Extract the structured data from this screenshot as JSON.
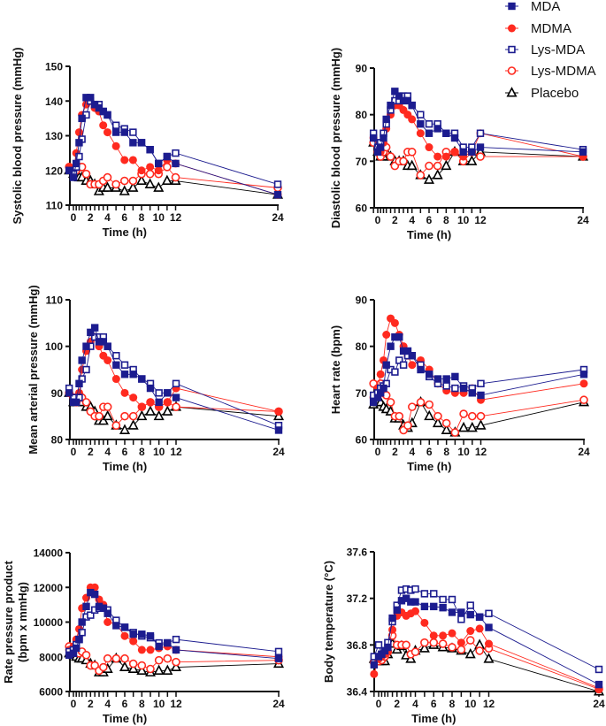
{
  "legend": [
    {
      "name": "MDA",
      "color": "#1c1c8f",
      "marker": "filled-square"
    },
    {
      "name": "MDMA",
      "color": "#ff2a1f",
      "marker": "filled-circle"
    },
    {
      "name": "Lys-MDA",
      "color": "#1c1c8f",
      "marker": "open-square"
    },
    {
      "name": "Lys-MDMA",
      "color": "#ff2a1f",
      "marker": "open-circle"
    },
    {
      "name": "Placebo",
      "color": "#000000",
      "marker": "open-triangle"
    }
  ],
  "chart_data": [
    {
      "type": "line",
      "ylabel": "Systolic blood pressure (mmHg)",
      "xlabel": "Time (h)",
      "ylim": [
        110,
        150
      ],
      "yticks": [
        110,
        120,
        130,
        140,
        150
      ],
      "xticks": [
        0,
        2,
        4,
        6,
        8,
        10,
        12,
        24
      ],
      "x": [
        -0.5,
        0,
        0.33,
        0.67,
        1,
        1.5,
        2,
        2.5,
        3,
        3.5,
        4,
        5,
        6,
        7,
        8,
        9,
        10,
        11,
        12,
        24
      ],
      "series": [
        {
          "name": "MDA",
          "values": [
            120,
            118,
            122,
            128,
            135,
            141,
            141,
            139,
            138,
            137,
            136,
            131,
            131,
            128,
            128,
            126,
            122,
            124,
            122,
            113
          ]
        },
        {
          "name": "MDMA",
          "values": [
            121,
            120,
            125,
            131,
            136,
            139,
            140,
            138,
            137,
            133,
            131,
            127,
            123,
            123,
            120,
            121,
            120,
            123,
            122,
            113
          ]
        },
        {
          "name": "Lys-MDA",
          "values": [
            120,
            119,
            121,
            124,
            129,
            136,
            140,
            139,
            139,
            137,
            136,
            133,
            132,
            131,
            128,
            126,
            122,
            124,
            125,
            116
          ]
        },
        {
          "name": "Lys-MDMA",
          "values": [
            121,
            120,
            120,
            121,
            121,
            119,
            116,
            116,
            116,
            117,
            118,
            116,
            117,
            117,
            119,
            119,
            119,
            121,
            118,
            115
          ]
        },
        {
          "name": "Placebo",
          "values": [
            120,
            119,
            119,
            118,
            118,
            117,
            117,
            116,
            114,
            115,
            115,
            115,
            114,
            115,
            117,
            116,
            115,
            117,
            117,
            113
          ]
        }
      ]
    },
    {
      "type": "line",
      "ylabel": "Diastolic blood pressure (mmHg)",
      "xlabel": "Time (h)",
      "ylim": [
        60,
        90
      ],
      "yticks": [
        60,
        70,
        80,
        90
      ],
      "xticks": [
        0,
        2,
        4,
        6,
        8,
        10,
        12,
        24
      ],
      "x": [
        -0.5,
        0,
        0.33,
        0.67,
        1,
        1.5,
        2,
        2.5,
        3,
        3.5,
        4,
        5,
        6,
        7,
        8,
        9,
        10,
        11,
        12,
        24
      ],
      "series": [
        {
          "name": "MDA",
          "values": [
            75,
            72,
            73,
            75,
            79,
            82,
            85,
            84,
            83,
            83,
            82,
            78,
            76,
            77,
            76,
            75,
            72,
            72,
            73,
            72
          ]
        },
        {
          "name": "MDMA",
          "values": [
            75,
            73,
            72,
            74,
            77,
            80,
            82,
            82,
            81,
            80,
            79,
            76,
            73,
            71,
            71,
            72,
            71,
            72,
            76,
            71
          ]
        },
        {
          "name": "Lys-MDA",
          "values": [
            76,
            73,
            74,
            76,
            78,
            81,
            83,
            83,
            84,
            84,
            82,
            80,
            78,
            78,
            76,
            76,
            73,
            73,
            76,
            72.5
          ]
        },
        {
          "name": "Lys-MDMA",
          "values": [
            74,
            72,
            71,
            72,
            73,
            71,
            69,
            70,
            70,
            72,
            72,
            67,
            69,
            69,
            72,
            72,
            70,
            72,
            71,
            71
          ]
        },
        {
          "name": "Placebo",
          "values": [
            74,
            72,
            71,
            71,
            72,
            71,
            70,
            70,
            70,
            69,
            69,
            67,
            66,
            67,
            69,
            72,
            70,
            70,
            72,
            71
          ]
        }
      ]
    },
    {
      "type": "line",
      "ylabel": "Mean arterial pressure (mmHg)",
      "xlabel": "Time (h)",
      "ylim": [
        80,
        110
      ],
      "yticks": [
        80,
        90,
        100,
        110
      ],
      "xticks": [
        0,
        2,
        4,
        6,
        8,
        10,
        12,
        24
      ],
      "x": [
        -0.5,
        0,
        0.33,
        0.67,
        1,
        1.5,
        2,
        2.5,
        3,
        3.5,
        4,
        5,
        6,
        7,
        8,
        9,
        10,
        11,
        12,
        24
      ],
      "series": [
        {
          "name": "MDA",
          "values": [
            90,
            88,
            88,
            92,
            97,
            100,
            103,
            104,
            101,
            101,
            100,
            96,
            94,
            94,
            93,
            91,
            88,
            90,
            89,
            82
          ]
        },
        {
          "name": "MDMA",
          "values": [
            90,
            89,
            88,
            90,
            95,
            99,
            101,
            102,
            100,
            98,
            97,
            93,
            90,
            89,
            87,
            88,
            87,
            88,
            91,
            86
          ]
        },
        {
          "name": "Lys-MDA",
          "values": [
            91,
            89,
            88,
            89,
            93,
            95,
            100,
            102,
            102,
            102,
            100,
            98,
            96,
            95,
            93,
            92,
            90,
            90,
            92,
            83
          ]
        },
        {
          "name": "Lys-MDMA",
          "values": [
            90,
            89,
            88,
            89,
            89,
            88,
            86,
            85,
            85,
            87,
            87,
            83,
            85,
            85,
            87,
            88,
            87,
            88,
            87,
            86
          ]
        },
        {
          "name": "Placebo",
          "values": [
            90,
            88,
            88,
            88,
            88,
            87,
            87,
            86,
            84,
            84,
            85,
            83,
            82,
            83,
            85,
            86,
            85,
            86,
            87,
            85
          ]
        }
      ]
    },
    {
      "type": "line",
      "ylabel": "Heart rate (bpm)",
      "xlabel": "Time (h)",
      "ylim": [
        60,
        90
      ],
      "yticks": [
        60,
        70,
        80,
        90
      ],
      "xticks": [
        0,
        2,
        4,
        6,
        8,
        10,
        12,
        24
      ],
      "x": [
        -0.5,
        0,
        0.33,
        0.67,
        1,
        1.5,
        2,
        2.5,
        3,
        3.5,
        4,
        5,
        6,
        7,
        8,
        9,
        10,
        11,
        12,
        24
      ],
      "series": [
        {
          "name": "MDA",
          "values": [
            68,
            69,
            70,
            71,
            76,
            80,
            82,
            82,
            79,
            79,
            78,
            75,
            74,
            73,
            73,
            73.5,
            71,
            70,
            69.5,
            74
          ]
        },
        {
          "name": "MDMA",
          "values": [
            69,
            71,
            74,
            77,
            82.5,
            86,
            85,
            82.5,
            80,
            78,
            76,
            77,
            75,
            72,
            70.5,
            70,
            70,
            71,
            68.5,
            72
          ]
        },
        {
          "name": "Lys-MDA",
          "values": [
            69.5,
            70,
            71,
            71.5,
            72,
            75,
            74.5,
            77,
            76,
            78,
            78,
            76,
            73.5,
            72,
            71.5,
            71,
            71.5,
            71,
            72,
            75
          ]
        },
        {
          "name": "Lys-MDMA",
          "values": [
            72,
            71,
            72,
            70,
            69.5,
            68,
            65,
            65,
            62,
            63,
            67,
            68,
            67.5,
            65,
            63.5,
            61.5,
            65.5,
            65,
            65,
            68.5
          ]
        },
        {
          "name": "Placebo",
          "values": [
            67.5,
            68,
            68,
            67,
            66.5,
            66,
            64.5,
            64.5,
            63,
            62.5,
            63.5,
            68,
            65,
            63.5,
            62,
            61.5,
            62.5,
            62.5,
            63,
            68
          ]
        }
      ]
    },
    {
      "type": "line",
      "ylabel": "Rate pressure product\n(bpm x mmHg)",
      "xlabel": "Time (h)",
      "ylim": [
        6000,
        14000
      ],
      "yticks": [
        6000,
        8000,
        10000,
        12000,
        14000
      ],
      "xticks": [
        0,
        2,
        4,
        6,
        8,
        10,
        12,
        24
      ],
      "x": [
        -0.5,
        0,
        0.33,
        0.67,
        1,
        1.5,
        2,
        2.5,
        3,
        3.5,
        4,
        5,
        6,
        7,
        8,
        9,
        10,
        11,
        12,
        24
      ],
      "series": [
        {
          "name": "MDA",
          "values": [
            8100,
            8200,
            8500,
            9000,
            10000,
            10900,
            11700,
            11600,
            10900,
            10800,
            10500,
            9800,
            9700,
            9300,
            9300,
            9200,
            8600,
            8800,
            8400,
            7900
          ]
        },
        {
          "name": "MDMA",
          "values": [
            8400,
            8600,
            9000,
            9600,
            10800,
            11400,
            12000,
            12000,
            11300,
            11000,
            10000,
            9900,
            9200,
            8900,
            8400,
            8400,
            8500,
            8600,
            8400,
            8000
          ]
        },
        {
          "name": "Lys-MDA",
          "values": [
            8300,
            8400,
            8700,
            9000,
            9400,
            10300,
            10400,
            10700,
            10800,
            10800,
            10700,
            10100,
            9700,
            9400,
            9200,
            9100,
            8800,
            8800,
            9000,
            8300
          ]
        },
        {
          "name": "Lys-MDMA",
          "values": [
            8600,
            8500,
            8400,
            8200,
            8300,
            8100,
            7500,
            7500,
            7200,
            7400,
            7900,
            7900,
            7900,
            7600,
            7500,
            7300,
            7800,
            7900,
            7700,
            7800
          ]
        },
        {
          "name": "Placebo",
          "values": [
            8200,
            8100,
            8000,
            7900,
            7900,
            7800,
            7600,
            7500,
            7100,
            7100,
            7300,
            7900,
            7400,
            7300,
            7200,
            7100,
            7200,
            7200,
            7400,
            7600
          ]
        }
      ]
    },
    {
      "type": "line",
      "ylabel": "Body temperature (°C)",
      "xlabel": "Time (h)",
      "ylim": [
        36.4,
        37.6
      ],
      "yticks": [
        36.4,
        36.8,
        37.2,
        37.6
      ],
      "xticks": [
        0,
        2,
        4,
        6,
        8,
        10,
        12,
        24
      ],
      "x": [
        -0.5,
        0,
        0.33,
        0.67,
        1,
        1.5,
        2,
        2.5,
        3,
        3.5,
        4,
        5,
        6,
        7,
        8,
        9,
        10,
        11,
        12,
        24
      ],
      "series": [
        {
          "name": "MDA",
          "values": [
            36.63,
            36.7,
            36.72,
            36.75,
            36.78,
            37.03,
            37.1,
            37.18,
            37.2,
            37.17,
            37.17,
            37.13,
            37.13,
            37.12,
            37.08,
            37.08,
            37.06,
            37.04,
            36.95,
            36.46
          ]
        },
        {
          "name": "MDMA",
          "values": [
            36.55,
            36.68,
            36.7,
            36.72,
            36.75,
            36.93,
            37.05,
            37.08,
            37.05,
            37.07,
            37.09,
            36.99,
            36.88,
            36.88,
            36.9,
            36.82,
            36.92,
            36.94,
            36.81,
            36.43
          ]
        },
        {
          "name": "Lys-MDA",
          "values": [
            36.7,
            36.8,
            36.72,
            36.75,
            36.82,
            37.0,
            37.14,
            37.27,
            37.28,
            37.27,
            37.28,
            37.24,
            37.24,
            37.19,
            37.19,
            37.02,
            37.14,
            37.04,
            37.07,
            36.59
          ]
        },
        {
          "name": "Lys-MDMA",
          "values": [
            36.65,
            36.66,
            36.67,
            36.7,
            36.74,
            36.88,
            36.8,
            36.8,
            36.8,
            36.72,
            36.74,
            36.82,
            36.82,
            36.81,
            36.78,
            36.76,
            36.84,
            36.75,
            36.77,
            36.42
          ]
        },
        {
          "name": "Placebo",
          "values": [
            36.68,
            36.66,
            36.66,
            36.66,
            36.72,
            36.81,
            36.76,
            36.79,
            36.71,
            36.68,
            36.75,
            36.77,
            36.8,
            36.78,
            36.77,
            36.75,
            36.72,
            36.8,
            36.68,
            36.4
          ]
        }
      ]
    }
  ]
}
